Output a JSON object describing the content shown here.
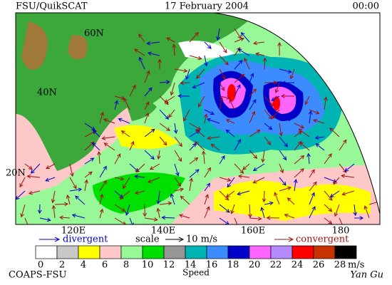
{
  "header": {
    "source": "FSU/QuikSCAT",
    "date": "17 February 2004",
    "time": "00:00"
  },
  "lat_labels": [
    "60N",
    "40N",
    "20N"
  ],
  "lon_labels": [
    "120E",
    "140E",
    "160E",
    "180"
  ],
  "legend": {
    "divergent": "divergent",
    "scale": "scale",
    "scale_value": "10 m/s",
    "convergent": "convergent"
  },
  "colorbar": {
    "labels": [
      0,
      2,
      4,
      6,
      8,
      10,
      12,
      14,
      16,
      18,
      20,
      22,
      24,
      26,
      28
    ],
    "unit": "m/s",
    "title": "Speed",
    "colors": [
      "#ffffff",
      "#c8c8c8",
      "#ffff00",
      "#ffc8c8",
      "#98f898",
      "#00e000",
      "#969696",
      "#00b4b4",
      "#3c8cff",
      "#0000c8",
      "#ff64ff",
      "#b48cff",
      "#ff0000",
      "#c83200",
      "#000000"
    ]
  },
  "footer": {
    "org": "COAPS-FSU",
    "signature": "Yan Gu"
  }
}
